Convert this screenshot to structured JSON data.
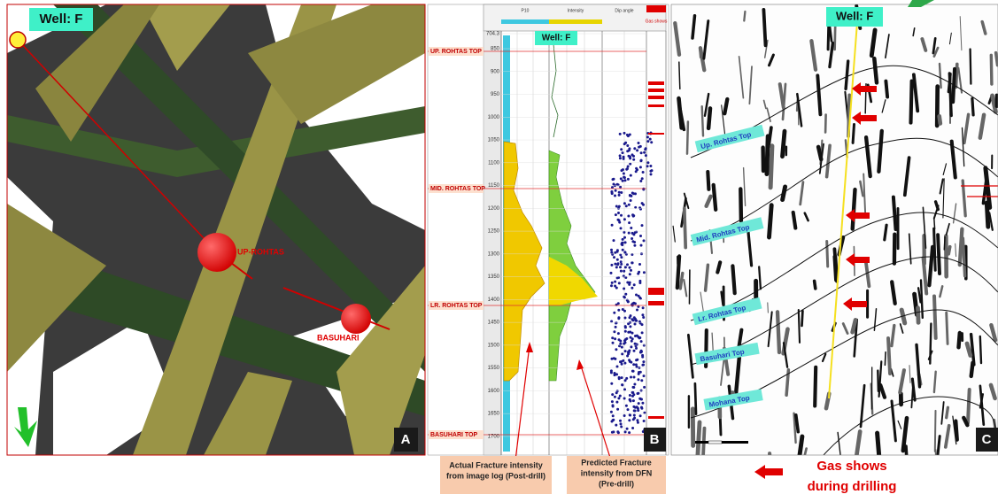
{
  "panel_a": {
    "well_label": "Well: F",
    "markers": [
      "UP-ROHTAS",
      "BASUHARI"
    ],
    "panel_letter": "A"
  },
  "panel_b": {
    "well_label": "Well: F",
    "header": [
      "P10",
      "Intensity",
      "Dip angle",
      "Gas shows"
    ],
    "formation_tops": [
      "UP. ROHTAS TOP",
      "MID. ROHTAS TOP",
      "LR. ROHTAS TOP",
      "BASUHARI TOP"
    ],
    "depth_labels": [
      704.3,
      850,
      900,
      950,
      1000,
      1050,
      1100,
      1150,
      1200,
      1250,
      1300,
      1350,
      1400,
      1450,
      1500,
      1550,
      1600,
      1650,
      1700
    ],
    "panel_letter": "B"
  },
  "panel_c": {
    "well_label": "Well: F",
    "horizons": [
      "Up. Rohtas Top",
      "Mid. Rohtas Top",
      "Lr. Rohtas Top",
      "Basuhari Top",
      "Mohana Top"
    ],
    "panel_letter": "C"
  },
  "captions": {
    "actual": [
      "Actual Fracture intensity",
      "from image log (Post-drill)"
    ],
    "predicted": [
      "Predicted Fracture",
      "intensity from DFN",
      "(Pre-drill)"
    ],
    "gas_shows": [
      "Gas shows",
      "during drilling"
    ]
  }
}
